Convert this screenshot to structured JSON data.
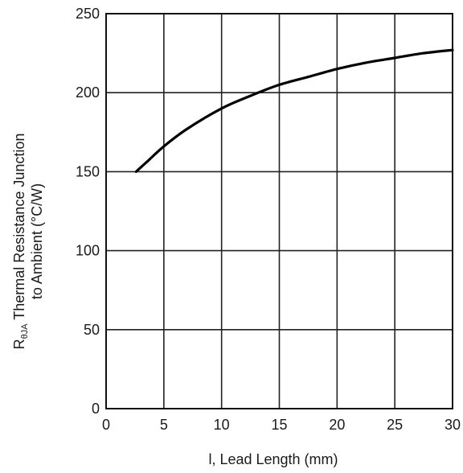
{
  "chart_data": {
    "type": "line",
    "xlabel": "l, Lead Length (mm)",
    "ylabel_line1_symbol": "R",
    "ylabel_line1_subscript": "θJA",
    "ylabel_line1_text": " Thermal Resistance Junction",
    "ylabel_line2": "to Ambient (°C/W)",
    "xlim": [
      0,
      30
    ],
    "ylim": [
      0,
      250
    ],
    "x_ticks": [
      0,
      5,
      10,
      15,
      20,
      25,
      30
    ],
    "y_ticks": [
      0,
      50,
      100,
      150,
      200,
      250
    ],
    "grid": true,
    "series": [
      {
        "x": [
          2.6,
          3.5,
          5,
          7,
          10,
          12.5,
          15,
          17.5,
          20,
          22.5,
          25,
          27.5,
          30
        ],
        "values": [
          150,
          156,
          166,
          177,
          190,
          198,
          205,
          210,
          215,
          219,
          222,
          225,
          227
        ]
      }
    ]
  }
}
